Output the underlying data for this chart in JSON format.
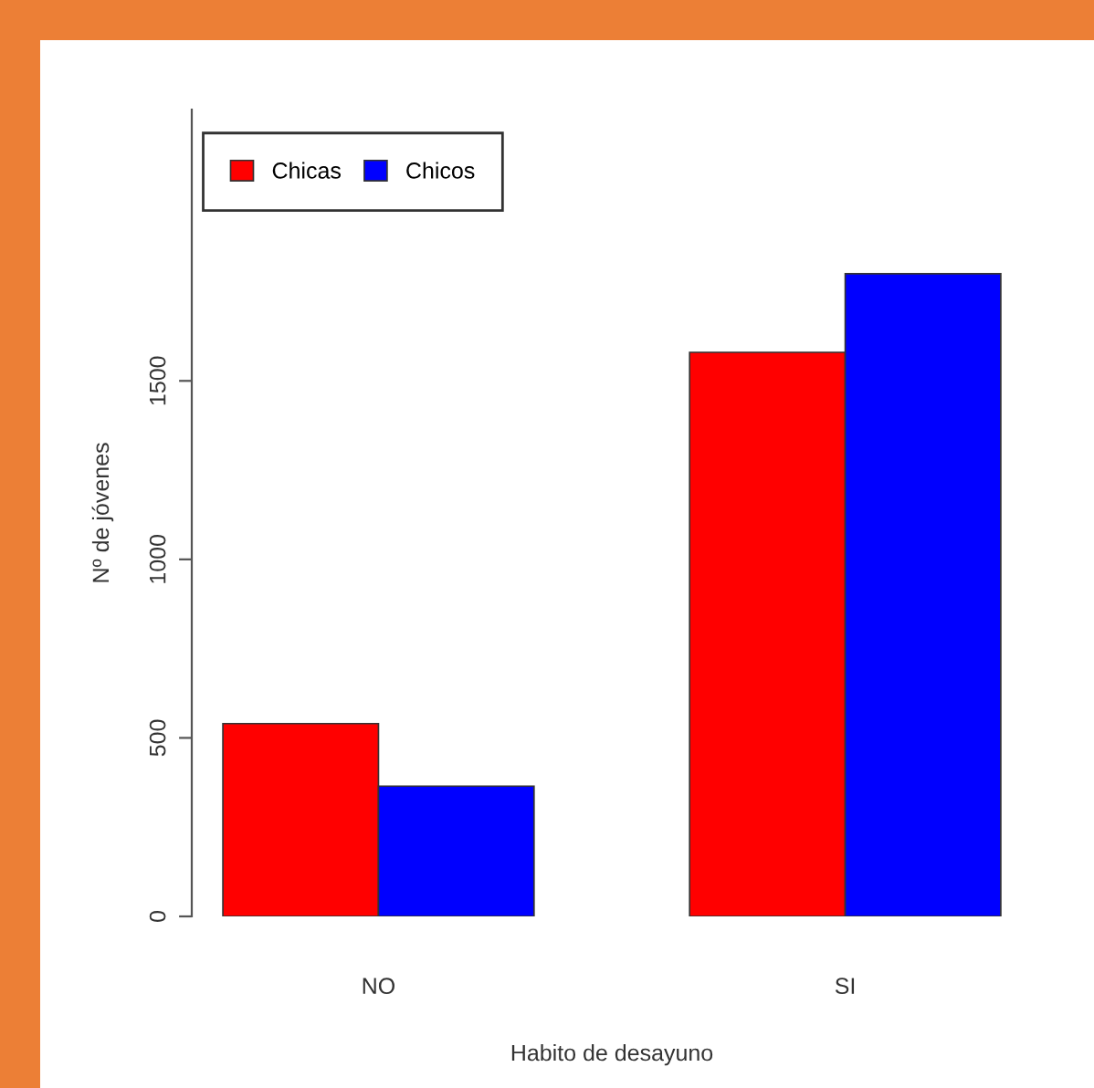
{
  "chart_data": {
    "type": "bar",
    "xlabel": "Habito de desayuno",
    "ylabel": "Nº de jóvenes",
    "categories": [
      "NO",
      "SI"
    ],
    "series": [
      {
        "name": "Chicas",
        "color": "#ff0000",
        "values": [
          540,
          1580
        ]
      },
      {
        "name": "Chicos",
        "color": "#0000ff",
        "values": [
          365,
          1800
        ]
      }
    ],
    "ylim": [
      0,
      2260
    ],
    "yticks": [
      0,
      500,
      1000,
      1500
    ],
    "grid": false,
    "legend": "top left"
  }
}
